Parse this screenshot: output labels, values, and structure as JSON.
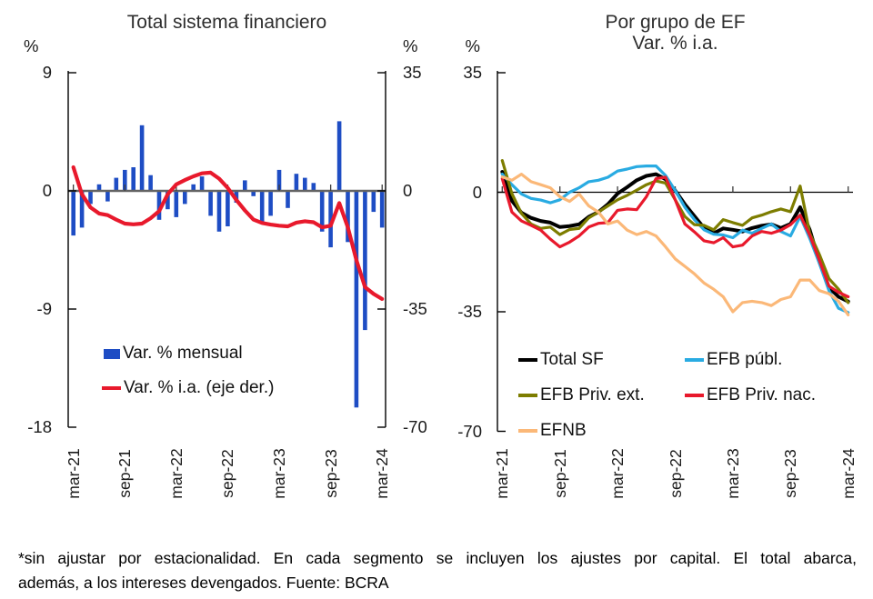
{
  "footnote": {
    "line1": "*sin ajustar por estacionalidad. En cada segmento se incluyen los ajustes por capital. El total abarca,",
    "line2": "además, a los intereses devengados. Fuente: BCRA"
  },
  "chart_data": [
    {
      "type": "bar",
      "title": "Total sistema financiero",
      "x": [
        "mar-21",
        "abr-21",
        "may-21",
        "jun-21",
        "jul-21",
        "ago-21",
        "sep-21",
        "oct-21",
        "nov-21",
        "dic-21",
        "ene-22",
        "feb-22",
        "mar-22",
        "abr-22",
        "may-22",
        "jun-22",
        "jul-22",
        "ago-22",
        "sep-22",
        "oct-22",
        "nov-22",
        "dic-22",
        "ene-23",
        "feb-23",
        "mar-23",
        "abr-23",
        "may-23",
        "jun-23",
        "jul-23",
        "ago-23",
        "sep-23",
        "oct-23",
        "nov-23",
        "dic-23",
        "ene-24",
        "feb-24",
        "mar-24"
      ],
      "x_tick_labels": [
        "mar-21",
        "sep-21",
        "mar-22",
        "sep-22",
        "mar-23",
        "sep-23",
        "mar-24"
      ],
      "x_tick_indices": [
        0,
        6,
        12,
        18,
        24,
        30,
        36
      ],
      "left_axis": {
        "unit": "%",
        "ticks": [
          9,
          0,
          -9,
          -18
        ],
        "range": [
          -18,
          9
        ]
      },
      "right_axis": {
        "unit": "%",
        "ticks": [
          35,
          0,
          -35,
          -70
        ],
        "range": [
          -70,
          35
        ]
      },
      "grid": false,
      "legend_position": "inside-bottom-left",
      "series": [
        {
          "name": "Var. % mensual",
          "type": "bar",
          "axis": "left",
          "color": "#1E4DC4",
          "line_width": 0,
          "values": [
            -3.4,
            -2.8,
            -1.0,
            0.5,
            -0.8,
            1.0,
            1.6,
            1.8,
            5.0,
            1.2,
            -2.2,
            -1.4,
            -2.0,
            -1.0,
            0.5,
            1.1,
            -1.9,
            -3.1,
            -2.7,
            -0.9,
            0.8,
            -0.4,
            -2.4,
            -1.9,
            1.6,
            -1.3,
            1.3,
            1.0,
            0.6,
            -3.1,
            -4.3,
            5.3,
            -3.9,
            -16.5,
            -10.6,
            -1.6,
            -2.8
          ]
        },
        {
          "name": "Var. % i.a. (eje der.)",
          "type": "line",
          "axis": "right",
          "color": "#E8192C",
          "line_width": 4.2,
          "values": [
            7.0,
            -1.0,
            -4.9,
            -6.7,
            -7.2,
            -8.5,
            -9.7,
            -9.9,
            -9.7,
            -8.1,
            -6.0,
            -1.0,
            1.9,
            3.2,
            4.3,
            5.2,
            5.4,
            3.6,
            0.9,
            -2.7,
            -5.8,
            -8.5,
            -9.5,
            -10.0,
            -10.3,
            -10.5,
            -9.4,
            -9.0,
            -9.3,
            -10.8,
            -10.3,
            -3.6,
            -10.8,
            -20.5,
            -28.5,
            -30.5,
            -32.0
          ]
        }
      ]
    },
    {
      "type": "line",
      "title": "Por grupo de EF",
      "subtitle": "Var. % i.a.",
      "x": [
        "mar-21",
        "abr-21",
        "may-21",
        "jun-21",
        "jul-21",
        "ago-21",
        "sep-21",
        "oct-21",
        "nov-21",
        "dic-21",
        "ene-22",
        "feb-22",
        "mar-22",
        "abr-22",
        "may-22",
        "jun-22",
        "jul-22",
        "ago-22",
        "sep-22",
        "oct-22",
        "nov-22",
        "dic-22",
        "ene-23",
        "feb-23",
        "mar-23",
        "abr-23",
        "may-23",
        "jun-23",
        "jul-23",
        "ago-23",
        "sep-23",
        "oct-23",
        "nov-23",
        "dic-23",
        "ene-24",
        "feb-24",
        "mar-24"
      ],
      "x_tick_labels": [
        "mar-21",
        "sep-21",
        "mar-22",
        "sep-22",
        "mar-23",
        "sep-23",
        "mar-24"
      ],
      "x_tick_indices": [
        0,
        6,
        12,
        18,
        24,
        30,
        36
      ],
      "left_axis": {
        "unit": "%",
        "ticks": [
          35,
          0,
          -35,
          -70
        ],
        "range": [
          -70,
          35
        ]
      },
      "grid": false,
      "legend_position": "inside-bottom-left-two-columns",
      "series": [
        {
          "name": "Total SF",
          "type": "line",
          "axis": "left",
          "color": "#000000",
          "line_width": 4.0,
          "values": [
            6.0,
            -2.5,
            -6.0,
            -7.5,
            -8.4,
            -8.9,
            -10.2,
            -9.9,
            -9.4,
            -7.2,
            -5.8,
            -3.5,
            -0.4,
            1.5,
            3.5,
            4.8,
            5.3,
            3.8,
            0.5,
            -3.5,
            -7.0,
            -10.5,
            -12.0,
            -10.6,
            -11.0,
            -11.5,
            -10.5,
            -9.8,
            -9.4,
            -10.5,
            -9.3,
            -4.4,
            -11.0,
            -20.4,
            -27.9,
            -30.6,
            -32.0
          ]
        },
        {
          "name": "EFB públ.",
          "type": "line",
          "axis": "left",
          "color": "#29ABE2",
          "line_width": 3.2,
          "values": [
            5.3,
            2.2,
            -0.5,
            -1.8,
            -2.3,
            -3.1,
            -2.2,
            0.0,
            1.3,
            3.1,
            3.5,
            4.4,
            6.2,
            6.8,
            7.5,
            7.7,
            7.7,
            4.9,
            0.5,
            -4.4,
            -8.0,
            -11.0,
            -12.3,
            -12.5,
            -13.3,
            -11.1,
            -12.0,
            -10.6,
            -9.3,
            -11.5,
            -12.8,
            -7.1,
            -13.5,
            -20.8,
            -28.8,
            -34.0,
            -35.2
          ]
        },
        {
          "name": "EFB Priv. ext.",
          "type": "line",
          "axis": "left",
          "color": "#7D7D00",
          "line_width": 3.2,
          "values": [
            9.3,
            -0.4,
            -6.2,
            -9.3,
            -10.6,
            -10.2,
            -12.4,
            -10.9,
            -10.6,
            -7.5,
            -5.8,
            -4.0,
            -2.2,
            -0.9,
            0.6,
            2.2,
            3.3,
            2.7,
            -2.2,
            -7.1,
            -9.5,
            -9.7,
            -11.0,
            -8.0,
            -8.9,
            -9.7,
            -7.5,
            -6.7,
            -5.7,
            -4.9,
            -5.7,
            1.8,
            -12.0,
            -18.2,
            -25.3,
            -28.4,
            -32.3
          ]
        },
        {
          "name": "EFB Priv. nac.",
          "type": "line",
          "axis": "left",
          "color": "#E8192C",
          "line_width": 3.2,
          "values": [
            4.0,
            -5.8,
            -8.4,
            -9.7,
            -11.1,
            -13.7,
            -16.0,
            -14.6,
            -12.8,
            -10.2,
            -9.1,
            -8.9,
            -5.3,
            -4.9,
            -5.1,
            -1.3,
            4.0,
            4.4,
            -2.2,
            -9.3,
            -11.6,
            -14.2,
            -14.8,
            -13.3,
            -16.0,
            -15.5,
            -12.8,
            -11.5,
            -12.0,
            -11.1,
            -9.5,
            -6.7,
            -12.5,
            -19.9,
            -27.5,
            -29.3,
            -30.6
          ]
        },
        {
          "name": "EFNB",
          "type": "line",
          "axis": "left",
          "color": "#FBB878",
          "line_width": 3.2,
          "values": [
            4.5,
            3.5,
            5.3,
            3.1,
            2.2,
            1.3,
            -1.3,
            -2.7,
            -0.5,
            -4.0,
            -5.8,
            -9.3,
            -8.4,
            -11.1,
            -12.4,
            -11.5,
            -12.8,
            -16.0,
            -19.5,
            -21.7,
            -23.9,
            -26.6,
            -28.4,
            -30.6,
            -35.0,
            -32.3,
            -31.9,
            -32.3,
            -33.2,
            -31.4,
            -30.6,
            -25.7,
            -25.7,
            -28.8,
            -29.7,
            -31.9,
            -35.9
          ]
        }
      ]
    }
  ]
}
